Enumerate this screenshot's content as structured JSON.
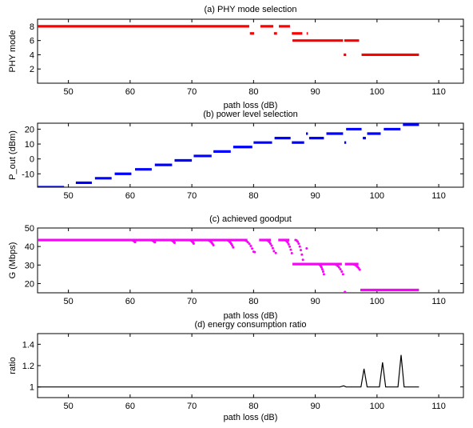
{
  "chart_data": [
    {
      "type": "scatter",
      "title": "(a) PHY mode selection",
      "xlabel": "path loss (dB)",
      "ylabel": "PHY mode",
      "xlim": [
        45,
        114
      ],
      "ylim": [
        0,
        9
      ],
      "xticks": [
        50,
        60,
        70,
        80,
        90,
        100,
        110
      ],
      "yticks": [
        2,
        4,
        6,
        8
      ],
      "grid": false,
      "color": "#ff0000",
      "segments": [
        {
          "x": [
            45,
            79.3
          ],
          "y": 8
        },
        {
          "x": [
            79.4,
            80.1
          ],
          "y": 7
        },
        {
          "x": [
            81.1,
            83.2
          ],
          "y": 8
        },
        {
          "x": [
            83.3,
            83.8
          ],
          "y": 7
        },
        {
          "x": [
            84.1,
            85.9
          ],
          "y": 8
        },
        {
          "x": [
            86.2,
            87.9
          ],
          "y": 7
        },
        {
          "x": [
            88.6,
            88.8
          ],
          "y": 7
        },
        {
          "x": [
            86.3,
            94.5
          ],
          "y": 6
        },
        {
          "x": [
            94.7,
            97.1
          ],
          "y": 6
        },
        {
          "x": [
            94.6,
            95.0
          ],
          "y": 4
        },
        {
          "x": [
            97.5,
            106.8
          ],
          "y": 4
        }
      ]
    },
    {
      "type": "scatter",
      "title": "(b) power level selection",
      "xlabel": "",
      "ylabel": "P_out (dBm)",
      "xlim": [
        45,
        114
      ],
      "ylim": [
        -19,
        24
      ],
      "xticks": [
        50,
        60,
        70,
        80,
        90,
        100,
        110
      ],
      "yticks": [
        -10,
        0,
        10,
        20
      ],
      "grid": false,
      "color": "#0000ff",
      "segments": [
        {
          "x": [
            45,
            49.3
          ],
          "y": -19
        },
        {
          "x": [
            51.2,
            53.8
          ],
          "y": -16
        },
        {
          "x": [
            54.3,
            57.0
          ],
          "y": -13
        },
        {
          "x": [
            57.5,
            60.2
          ],
          "y": -10
        },
        {
          "x": [
            60.8,
            63.5
          ],
          "y": -7
        },
        {
          "x": [
            64.0,
            66.8
          ],
          "y": -4
        },
        {
          "x": [
            67.2,
            70.0
          ],
          "y": -1
        },
        {
          "x": [
            70.3,
            73.2
          ],
          "y": 2
        },
        {
          "x": [
            73.5,
            76.3
          ],
          "y": 5
        },
        {
          "x": [
            76.7,
            79.8
          ],
          "y": 8
        },
        {
          "x": [
            80.0,
            83.0
          ],
          "y": 11
        },
        {
          "x": [
            83.4,
            86.0
          ],
          "y": 14
        },
        {
          "x": [
            86.2,
            88.2
          ],
          "y": 11
        },
        {
          "x": [
            88.5,
            88.8
          ],
          "y": 17
        },
        {
          "x": [
            89.0,
            91.4
          ],
          "y": 14
        },
        {
          "x": [
            91.8,
            94.5
          ],
          "y": 17
        },
        {
          "x": [
            94.7,
            95.0
          ],
          "y": 11
        },
        {
          "x": [
            95.0,
            97.5
          ],
          "y": 20
        },
        {
          "x": [
            97.7,
            98.2
          ],
          "y": 14
        },
        {
          "x": [
            98.4,
            100.6
          ],
          "y": 17
        },
        {
          "x": [
            101.1,
            103.8
          ],
          "y": 20
        },
        {
          "x": [
            104.2,
            106.8
          ],
          "y": 23
        }
      ]
    },
    {
      "type": "scatter",
      "title": "(c) achieved goodput",
      "xlabel": "path loss (dB)",
      "ylabel": "G (Mbps)",
      "xlim": [
        45,
        114
      ],
      "ylim": [
        15,
        50
      ],
      "xticks": [
        50,
        60,
        70,
        80,
        90,
        100,
        110
      ],
      "yticks": [
        20,
        30,
        40,
        50
      ],
      "grid": false,
      "color": "#ff00ff",
      "flat_runs": [
        {
          "x": [
            45,
            79.0
          ],
          "y": 43.5
        },
        {
          "x": [
            80.9,
            82.8
          ],
          "y": 43.5
        },
        {
          "x": [
            84.0,
            85.8
          ],
          "y": 43.5
        },
        {
          "x": [
            86.3,
            94.3
          ],
          "y": 30.5
        },
        {
          "x": [
            94.8,
            97.0
          ],
          "y": 30.5
        },
        {
          "x": [
            97.3,
            106.8
          ],
          "y": 16.5
        }
      ],
      "dips": [
        {
          "x": [
            60.2,
            60.8
          ],
          "y": [
            43.5,
            42.4
          ]
        },
        {
          "x": [
            63.3,
            64.0
          ],
          "y": [
            43.5,
            42.3
          ]
        },
        {
          "x": [
            66.5,
            67.2
          ],
          "y": [
            43.5,
            42.0
          ]
        },
        {
          "x": [
            69.6,
            70.3
          ],
          "y": [
            43.5,
            41.6
          ]
        },
        {
          "x": [
            72.5,
            73.5
          ],
          "y": [
            43.5,
            40.7
          ]
        },
        {
          "x": [
            75.6,
            76.7
          ],
          "y": [
            43.5,
            39.5
          ]
        },
        {
          "x": [
            78.4,
            80.0
          ],
          "y": [
            43.5,
            37.2
          ]
        },
        {
          "x": [
            82.0,
            83.3
          ],
          "y": [
            43.5,
            37.5
          ]
        },
        {
          "x": [
            85.0,
            86.2
          ],
          "y": [
            43.5,
            36.4
          ]
        },
        {
          "x": [
            86.8,
            88.0
          ],
          "y": [
            43.5,
            32.8
          ]
        },
        {
          "x": [
            93.0,
            94.5
          ],
          "y": [
            30.5,
            25.0
          ]
        },
        {
          "x": [
            96.0,
            97.2
          ],
          "y": [
            30.5,
            27.5
          ]
        },
        {
          "x": [
            90.5,
            91.4
          ],
          "y": [
            30.5,
            25.0
          ]
        }
      ],
      "isolated_points": [
        {
          "x": 80.2,
          "y": 37.0
        },
        {
          "x": 83.6,
          "y": 36.5
        },
        {
          "x": 88.6,
          "y": 39.0
        },
        {
          "x": 94.8,
          "y": 15.5
        }
      ]
    },
    {
      "type": "line",
      "title": "(d) energy consumption ratio",
      "xlabel": "path loss (dB)",
      "ylabel": "ratio",
      "xlim": [
        45,
        114
      ],
      "ylim": [
        0.9,
        1.5
      ],
      "xticks": [
        50,
        60,
        70,
        80,
        90,
        100,
        110
      ],
      "yticks": [
        1,
        1.2,
        1.4
      ],
      "grid": false,
      "color": "#000000",
      "x": [
        45,
        80,
        94,
        94.6,
        95,
        97.4,
        97.9,
        98.4,
        100.4,
        100.9,
        101.4,
        103.4,
        103.9,
        104.4,
        106.8
      ],
      "y": [
        1.0,
        1.0,
        1.0,
        1.01,
        1.0,
        1.0,
        1.17,
        1.0,
        1.0,
        1.23,
        1.0,
        1.0,
        1.3,
        1.0,
        1.0
      ]
    }
  ]
}
